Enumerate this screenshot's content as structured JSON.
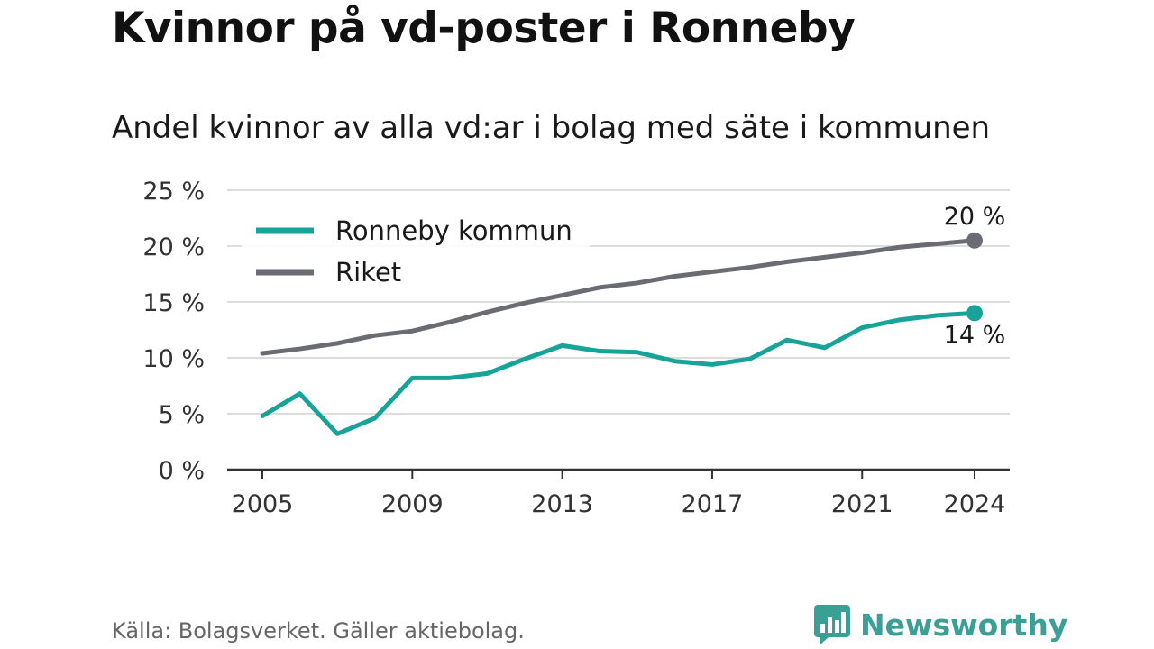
{
  "title": "Kvinnor på vd-poster i Ronneby",
  "subtitle": "Andel kvinnor av alla vd:ar i bolag med säte i kommunen",
  "source": "Källa: Bolagsverket. Gäller aktiebolag.",
  "brand": {
    "name": "Newsworthy",
    "icon": "newsworthy-logo-icon",
    "color": "#3a9f95"
  },
  "colors": {
    "ronneby": "#17a398",
    "riket": "#6b6b73",
    "grid": "#dddddd",
    "axis": "#333333"
  },
  "chart_data": {
    "type": "line",
    "title": "Kvinnor på vd-poster i Ronneby",
    "subtitle": "Andel kvinnor av alla vd:ar i bolag med säte i kommunen",
    "xlabel": "",
    "ylabel": "",
    "x": [
      2005,
      2006,
      2007,
      2008,
      2009,
      2010,
      2011,
      2012,
      2013,
      2014,
      2015,
      2016,
      2017,
      2018,
      2019,
      2020,
      2021,
      2022,
      2023,
      2024
    ],
    "xlim": [
      2005,
      2024
    ],
    "ylim": [
      0,
      25
    ],
    "x_ticks": [
      "2005",
      "2009",
      "2013",
      "2017",
      "2021",
      "2024"
    ],
    "y_ticks": [
      "0 %",
      "5 %",
      "10 %",
      "15 %",
      "20 %",
      "25 %"
    ],
    "grid": true,
    "legend_position": "top-left",
    "series": [
      {
        "name": "Ronneby kommun",
        "color": "#17a398",
        "values": [
          4.8,
          6.8,
          3.2,
          4.6,
          8.2,
          8.2,
          8.6,
          9.9,
          11.1,
          10.6,
          10.5,
          9.7,
          9.4,
          9.9,
          11.6,
          10.9,
          12.7,
          13.4,
          13.8,
          14.0
        ],
        "end_label": "14 %"
      },
      {
        "name": "Riket",
        "color": "#6b6b73",
        "values": [
          10.4,
          10.8,
          11.3,
          12.0,
          12.4,
          13.2,
          14.1,
          14.9,
          15.6,
          16.3,
          16.7,
          17.3,
          17.7,
          18.1,
          18.6,
          19.0,
          19.4,
          19.9,
          20.2,
          20.5
        ],
        "end_label": "20 %"
      }
    ]
  }
}
